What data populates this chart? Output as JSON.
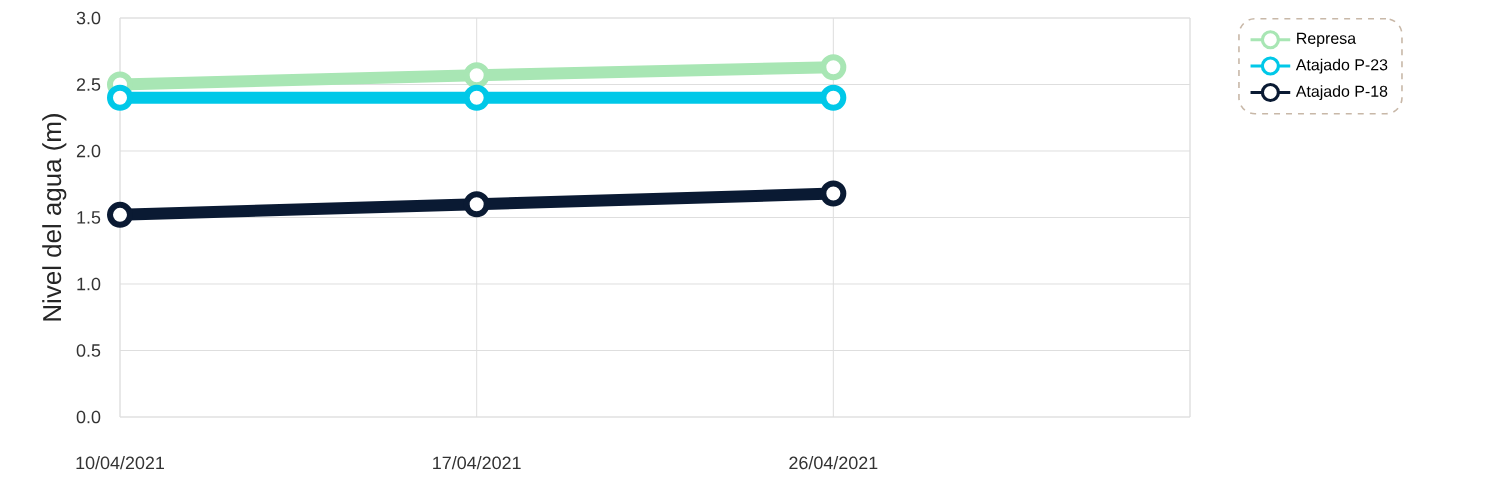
{
  "chart_data": {
    "type": "line",
    "ylabel": "Nivel del agua (m)",
    "categories": [
      "10/04/2021",
      "17/04/2021",
      "26/04/2021",
      null
    ],
    "series": [
      {
        "name": "Represa",
        "color": "#a8e6b4",
        "values": [
          2.5,
          2.57,
          2.63,
          null
        ]
      },
      {
        "name": "Atajado P-23",
        "color": "#00c8e8",
        "values": [
          2.4,
          2.4,
          2.4,
          null
        ]
      },
      {
        "name": "Atajado P-18",
        "color": "#0a1a33",
        "values": [
          1.52,
          1.6,
          1.68,
          null
        ]
      }
    ],
    "ylim": [
      0,
      3
    ],
    "yticks": [
      {
        "value": 0,
        "label": "0.0"
      },
      {
        "value": 0.5,
        "label": "0.5"
      },
      {
        "value": 1,
        "label": "1.0"
      },
      {
        "value": 1.5,
        "label": "1.5"
      },
      {
        "value": 2,
        "label": "2.0"
      },
      {
        "value": 2.5,
        "label": "2.5"
      },
      {
        "value": 3,
        "label": "3.0"
      }
    ],
    "grid": true,
    "legend": "top right",
    "marker": "circle",
    "line_style": "solid"
  }
}
